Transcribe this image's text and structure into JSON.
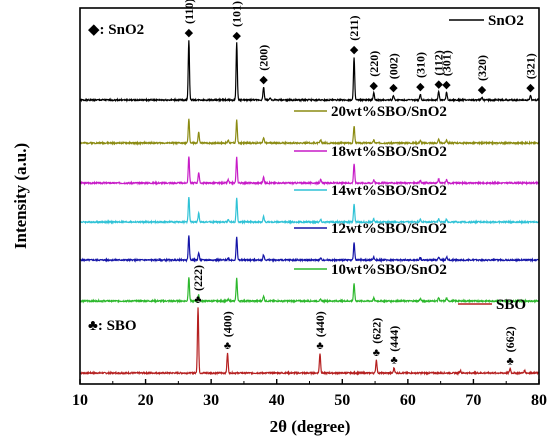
{
  "chart_data": {
    "type": "line",
    "xlabel": "2θ (degree)",
    "ylabel": "Intensity (a.u.)",
    "xlim": [
      10,
      80
    ],
    "x_ticks": [
      10,
      20,
      30,
      40,
      50,
      60,
      70,
      80
    ],
    "y_ticks_shown": false,
    "grid": false,
    "legend_placement": "top-right",
    "series": [
      {
        "name": "SnO2",
        "color": "#000000",
        "peaks": [
          {
            "two_theta": 26.6,
            "rel_intensity": 1.0,
            "hkl": "(110)"
          },
          {
            "two_theta": 33.9,
            "rel_intensity": 0.95,
            "hkl": "(101)"
          },
          {
            "two_theta": 38.0,
            "rel_intensity": 0.22,
            "hkl": "(200)"
          },
          {
            "two_theta": 39.0,
            "rel_intensity": 0.04,
            "hkl": ""
          },
          {
            "two_theta": 51.8,
            "rel_intensity": 0.72,
            "hkl": "(211)"
          },
          {
            "two_theta": 54.8,
            "rel_intensity": 0.12,
            "hkl": "(220)"
          },
          {
            "two_theta": 57.8,
            "rel_intensity": 0.08,
            "hkl": "(002)"
          },
          {
            "two_theta": 61.9,
            "rel_intensity": 0.1,
            "hkl": "(310)"
          },
          {
            "two_theta": 64.7,
            "rel_intensity": 0.14,
            "hkl": "(112)"
          },
          {
            "two_theta": 65.9,
            "rel_intensity": 0.13,
            "hkl": "(301)"
          },
          {
            "two_theta": 71.3,
            "rel_intensity": 0.05,
            "hkl": "(320)"
          },
          {
            "two_theta": 78.7,
            "rel_intensity": 0.08,
            "hkl": "(321)"
          }
        ]
      },
      {
        "name": "20wt%SBO/SnO2",
        "color": "#8b8b12",
        "peaks": [
          {
            "two_theta": 26.6,
            "rel_intensity": 1.0
          },
          {
            "two_theta": 28.1,
            "rel_intensity": 0.45
          },
          {
            "two_theta": 32.6,
            "rel_intensity": 0.12
          },
          {
            "two_theta": 33.9,
            "rel_intensity": 0.95
          },
          {
            "two_theta": 38.0,
            "rel_intensity": 0.22
          },
          {
            "two_theta": 46.7,
            "rel_intensity": 0.12
          },
          {
            "two_theta": 51.8,
            "rel_intensity": 0.72
          },
          {
            "two_theta": 54.8,
            "rel_intensity": 0.12
          },
          {
            "two_theta": 61.9,
            "rel_intensity": 0.1
          },
          {
            "two_theta": 64.7,
            "rel_intensity": 0.14
          },
          {
            "two_theta": 65.9,
            "rel_intensity": 0.13
          }
        ]
      },
      {
        "name": "18wt%SBO/SnO2",
        "color": "#c71cc7",
        "peaks": [
          {
            "two_theta": 26.6,
            "rel_intensity": 1.0
          },
          {
            "two_theta": 28.1,
            "rel_intensity": 0.4
          },
          {
            "two_theta": 32.6,
            "rel_intensity": 0.12
          },
          {
            "two_theta": 33.9,
            "rel_intensity": 0.95
          },
          {
            "two_theta": 38.0,
            "rel_intensity": 0.22
          },
          {
            "two_theta": 46.7,
            "rel_intensity": 0.12
          },
          {
            "two_theta": 51.8,
            "rel_intensity": 0.72
          },
          {
            "two_theta": 54.8,
            "rel_intensity": 0.12
          },
          {
            "two_theta": 61.9,
            "rel_intensity": 0.1
          },
          {
            "two_theta": 64.7,
            "rel_intensity": 0.14
          },
          {
            "two_theta": 65.9,
            "rel_intensity": 0.13
          }
        ]
      },
      {
        "name": "14wt%SBO/SnO2",
        "color": "#2fc2d6",
        "peaks": [
          {
            "two_theta": 26.6,
            "rel_intensity": 1.0
          },
          {
            "two_theta": 28.1,
            "rel_intensity": 0.35
          },
          {
            "two_theta": 32.6,
            "rel_intensity": 0.1
          },
          {
            "two_theta": 33.9,
            "rel_intensity": 0.95
          },
          {
            "two_theta": 38.0,
            "rel_intensity": 0.22
          },
          {
            "two_theta": 46.7,
            "rel_intensity": 0.1
          },
          {
            "two_theta": 51.8,
            "rel_intensity": 0.72
          },
          {
            "two_theta": 54.8,
            "rel_intensity": 0.12
          },
          {
            "two_theta": 61.9,
            "rel_intensity": 0.1
          },
          {
            "two_theta": 64.7,
            "rel_intensity": 0.14
          },
          {
            "two_theta": 65.9,
            "rel_intensity": 0.13
          }
        ]
      },
      {
        "name": "12wt%SBO/SnO2",
        "color": "#1515a8",
        "peaks": [
          {
            "two_theta": 26.6,
            "rel_intensity": 1.0
          },
          {
            "two_theta": 28.1,
            "rel_intensity": 0.3
          },
          {
            "two_theta": 32.6,
            "rel_intensity": 0.08
          },
          {
            "two_theta": 33.9,
            "rel_intensity": 0.95
          },
          {
            "two_theta": 38.0,
            "rel_intensity": 0.22
          },
          {
            "two_theta": 46.7,
            "rel_intensity": 0.08
          },
          {
            "two_theta": 51.8,
            "rel_intensity": 0.72
          },
          {
            "two_theta": 54.8,
            "rel_intensity": 0.12
          },
          {
            "two_theta": 61.9,
            "rel_intensity": 0.1
          },
          {
            "two_theta": 64.7,
            "rel_intensity": 0.14
          },
          {
            "two_theta": 65.9,
            "rel_intensity": 0.13
          }
        ]
      },
      {
        "name": "10wt%SBO/SnO2",
        "color": "#2db82d",
        "peaks": [
          {
            "two_theta": 26.6,
            "rel_intensity": 1.0
          },
          {
            "two_theta": 28.1,
            "rel_intensity": 0.25
          },
          {
            "two_theta": 32.6,
            "rel_intensity": 0.06
          },
          {
            "two_theta": 33.9,
            "rel_intensity": 0.95
          },
          {
            "two_theta": 38.0,
            "rel_intensity": 0.22
          },
          {
            "two_theta": 46.7,
            "rel_intensity": 0.06
          },
          {
            "two_theta": 51.8,
            "rel_intensity": 0.72
          },
          {
            "two_theta": 54.8,
            "rel_intensity": 0.12
          },
          {
            "two_theta": 61.9,
            "rel_intensity": 0.1
          },
          {
            "two_theta": 64.7,
            "rel_intensity": 0.14
          },
          {
            "two_theta": 65.9,
            "rel_intensity": 0.13
          }
        ]
      },
      {
        "name": "SBO",
        "color": "#b52020",
        "peaks": [
          {
            "two_theta": 28.0,
            "rel_intensity": 1.0,
            "hkl": "(222)"
          },
          {
            "two_theta": 32.5,
            "rel_intensity": 0.3,
            "hkl": "(400)"
          },
          {
            "two_theta": 46.6,
            "rel_intensity": 0.3,
            "hkl": "(440)"
          },
          {
            "two_theta": 55.2,
            "rel_intensity": 0.2,
            "hkl": "(622)"
          },
          {
            "two_theta": 57.9,
            "rel_intensity": 0.08,
            "hkl": "(444)"
          },
          {
            "two_theta": 68.0,
            "rel_intensity": 0.04,
            "hkl": ""
          },
          {
            "two_theta": 75.6,
            "rel_intensity": 0.07,
            "hkl": "(662)"
          },
          {
            "two_theta": 77.8,
            "rel_intensity": 0.04,
            "hkl": ""
          }
        ]
      }
    ],
    "phase_markers": {
      "SnO2": {
        "symbol": "◆",
        "label": ": SnO2"
      },
      "SBO": {
        "symbol": "♣",
        "label": ": SBO"
      }
    }
  }
}
